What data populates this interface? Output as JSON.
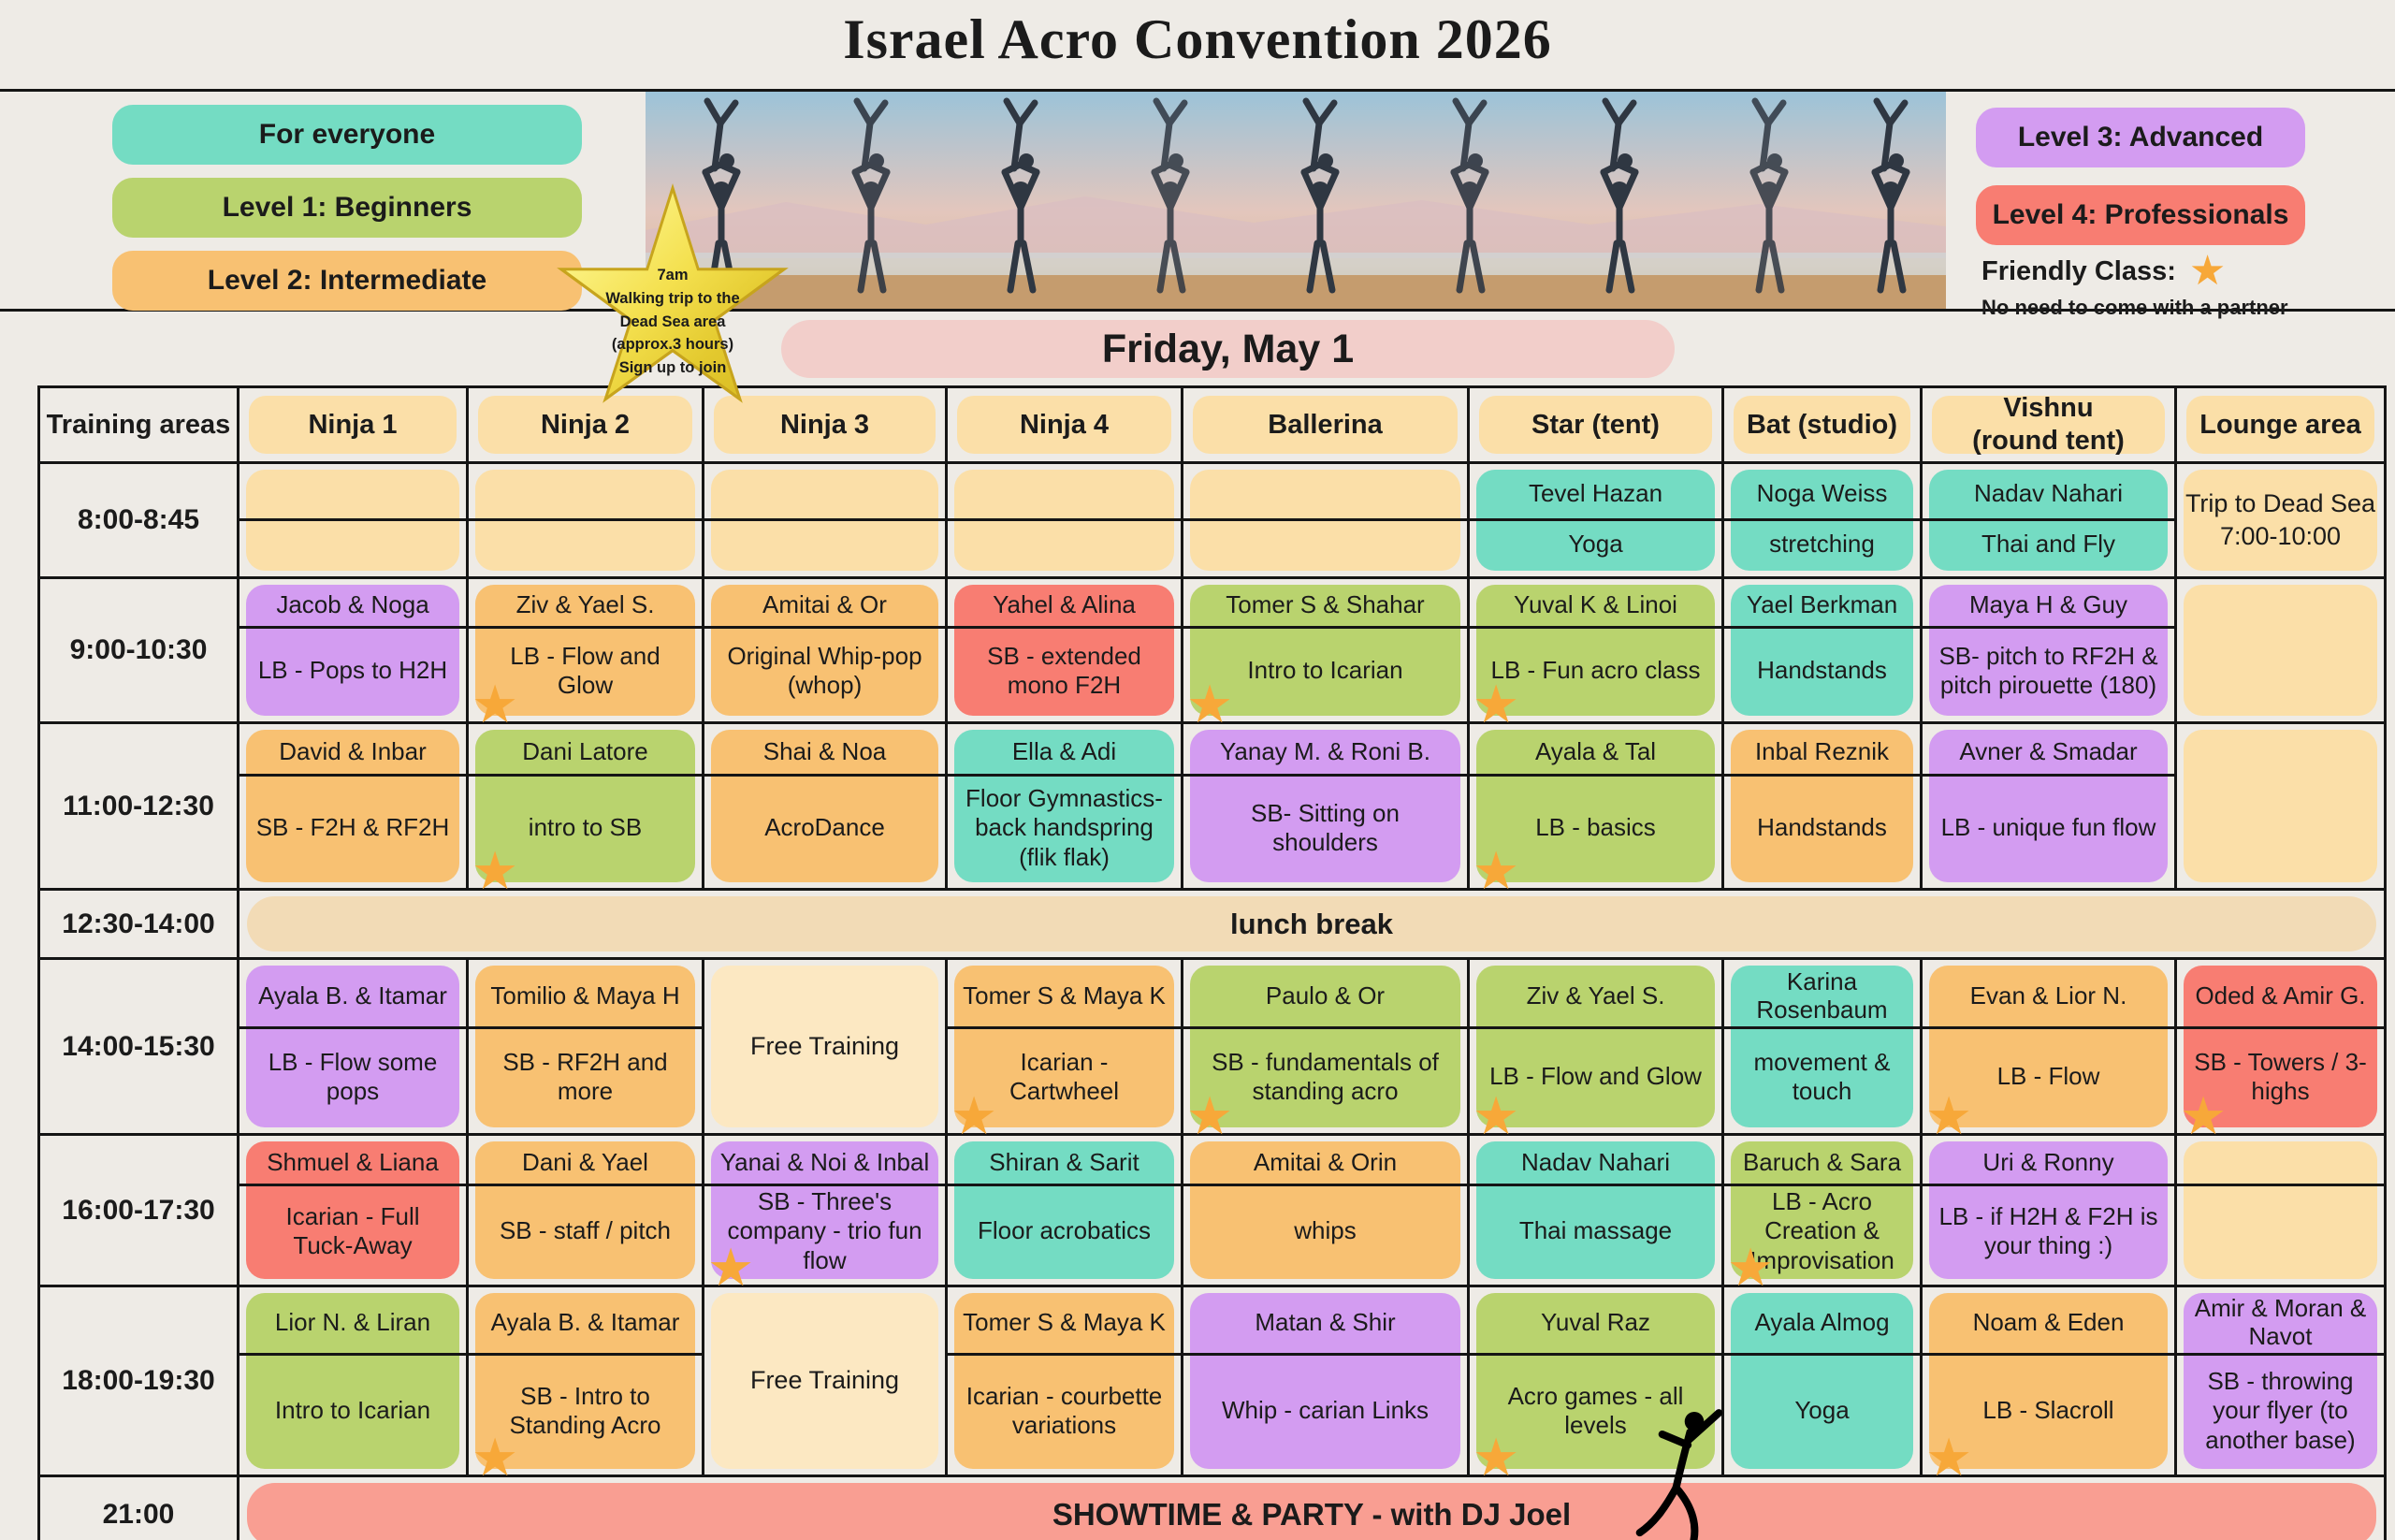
{
  "title": "Israel Acro Convention 2026",
  "day_banner": "Friday, May 1",
  "icons": {
    "friendly_star": "★"
  },
  "colors": {
    "everyone": "#74dcc3",
    "level1": "#b9d36e",
    "level2": "#f8c172",
    "level3": "#d39cf1",
    "level4": "#f87d72",
    "empty": "#fbdfa8",
    "free": "#fce8c2",
    "lunch": "#f2dbb6",
    "day_banner": "#f2ceca",
    "showtime": "#f99e92",
    "star": "#f7a839",
    "page_bg": "#eeebe6",
    "line": "#151515"
  },
  "legend": {
    "left": [
      {
        "label": "For everyone",
        "color_key": "everyone"
      },
      {
        "label": "Level 1: Beginners",
        "color_key": "level1"
      },
      {
        "label": "Level 2: Intermediate",
        "color_key": "level2"
      }
    ],
    "right": [
      {
        "label": "Level 3: Advanced",
        "color_key": "level3"
      },
      {
        "label": "Level 4: Professionals",
        "color_key": "level4"
      }
    ],
    "friendly_class": {
      "label": "Friendly Class:",
      "note": "No need to come with a partner"
    }
  },
  "star_badge": {
    "lines": [
      "7am",
      "Walking trip to the",
      "Dead Sea area",
      "(approx.3 hours)",
      "Sign up to join"
    ]
  },
  "schedule": {
    "columns": [
      "Training areas",
      "Ninja 1",
      "Ninja 2",
      "Ninja 3",
      "Ninja 4",
      "Ballerina",
      "Star (tent)",
      "Bat (studio)",
      "Vishnu\n(round tent)",
      "Lounge area"
    ],
    "rows": [
      {
        "time": "8:00-8:45",
        "cells": [
          {
            "level": "empty",
            "divider": true
          },
          {
            "level": "empty",
            "divider": true
          },
          {
            "level": "empty",
            "divider": true
          },
          {
            "level": "empty",
            "divider": true
          },
          {
            "level": "empty",
            "divider": true
          },
          {
            "who": "Tevel Hazan",
            "what": "Yoga",
            "level": "everyone"
          },
          {
            "who": "Noga Weiss",
            "what": "stretching",
            "level": "everyone"
          },
          {
            "who": "Nadav Nahari",
            "what": "Thai and Fly",
            "level": "everyone"
          },
          {
            "text": "Trip to Dead Sea\n7:00-10:00",
            "level": "empty"
          }
        ]
      },
      {
        "time": "9:00-10:30",
        "cells": [
          {
            "who": "Jacob & Noga",
            "what": "LB - Pops to H2H",
            "level": "level3"
          },
          {
            "who": "Ziv & Yael S.",
            "what": "LB - Flow and Glow",
            "level": "level2",
            "star": true
          },
          {
            "who": "Amitai & Or",
            "what": "Original Whip-pop (whop)",
            "level": "level2"
          },
          {
            "who": "Yahel & Alina",
            "what": "SB - extended mono F2H",
            "level": "level4"
          },
          {
            "who": "Tomer S & Shahar",
            "what": "Intro to Icarian",
            "level": "level1",
            "star": true
          },
          {
            "who": "Yuval K & Linoi",
            "what": "LB - Fun acro class",
            "level": "level1",
            "star": true
          },
          {
            "who": "Yael Berkman",
            "what": "Handstands",
            "level": "everyone"
          },
          {
            "who": "Maya H & Guy",
            "what": "SB- pitch to RF2H & pitch pirouette (180)",
            "level": "level3"
          },
          {
            "level": "empty"
          }
        ]
      },
      {
        "time": "11:00-12:30",
        "cells": [
          {
            "who": "David & Inbar",
            "what": "SB - F2H & RF2H",
            "level": "level2"
          },
          {
            "who": "Dani Latore",
            "what": "intro to SB",
            "level": "level1",
            "star": true
          },
          {
            "who": "Shai & Noa",
            "what": "AcroDance",
            "level": "level2"
          },
          {
            "who": "Ella & Adi",
            "what": "Floor Gymnastics- back handspring (flik flak)",
            "level": "everyone"
          },
          {
            "who": "Yanay M. & Roni B.",
            "what": "SB- Sitting on shoulders",
            "level": "level3"
          },
          {
            "who": "Ayala & Tal",
            "what": "LB - basics",
            "level": "level1",
            "star": true
          },
          {
            "who": "Inbal Reznik",
            "what": "Handstands",
            "level": "level2"
          },
          {
            "who": "Avner & Smadar",
            "what": "LB - unique fun flow",
            "level": "level3"
          },
          {
            "level": "empty"
          }
        ]
      },
      {
        "time": "14:00-15:30",
        "cells": [
          {
            "who": "Ayala B. & Itamar",
            "what": "LB - Flow some pops",
            "level": "level3"
          },
          {
            "who": "Tomilio & Maya H",
            "what": "SB - RF2H and more",
            "level": "level2"
          },
          {
            "text": "Free Training",
            "level": "free"
          },
          {
            "who": "Tomer S & Maya K",
            "what": "Icarian - Cartwheel",
            "level": "level2",
            "star": true
          },
          {
            "who": "Paulo & Or",
            "what": "SB - fundamentals of standing acro",
            "level": "level1",
            "star": true
          },
          {
            "who": "Ziv & Yael S.",
            "what": "LB - Flow and Glow",
            "level": "level1",
            "star": true
          },
          {
            "who": "Karina Rosenbaum",
            "what": "movement & touch",
            "level": "everyone"
          },
          {
            "who": "Evan & Lior N.",
            "what": "LB - Flow",
            "level": "level2",
            "star": true
          },
          {
            "who": "Oded & Amir G.",
            "what": "SB - Towers / 3-highs",
            "level": "level4",
            "star": true
          }
        ]
      },
      {
        "time": "16:00-17:30",
        "cells": [
          {
            "who": "Shmuel & Liana",
            "what": "Icarian - Full Tuck-Away",
            "level": "level4"
          },
          {
            "who": "Dani & Yael",
            "what": "SB - staff / pitch",
            "level": "level2"
          },
          {
            "who": "Yanai & Noi & Inbal",
            "what": "SB - Three's company - trio fun flow",
            "level": "level3",
            "star": true
          },
          {
            "who": "Shiran & Sarit",
            "what": "Floor acrobatics",
            "level": "everyone"
          },
          {
            "who": "Amitai & Orin",
            "what": "whips",
            "level": "level2"
          },
          {
            "who": "Nadav Nahari",
            "what": "Thai massage",
            "level": "everyone"
          },
          {
            "who": "Baruch & Sara",
            "what": "LB - Acro Creation & Improvisation",
            "level": "level1",
            "star": true
          },
          {
            "who": "Uri & Ronny",
            "what": "LB - if H2H & F2H is your thing :)",
            "level": "level3"
          },
          {
            "level": "empty",
            "divider": true
          }
        ]
      },
      {
        "time": "18:00-19:30",
        "cells": [
          {
            "who": "Lior N. & Liran",
            "what": "Intro to Icarian",
            "level": "level1"
          },
          {
            "who": "Ayala B. & Itamar",
            "what": "SB - Intro to Standing Acro",
            "level": "level2",
            "star": true
          },
          {
            "text": "Free Training",
            "level": "free"
          },
          {
            "who": "Tomer S & Maya K",
            "what": "Icarian - courbette variations",
            "level": "level2"
          },
          {
            "who": "Matan & Shir",
            "what": "Whip - carian Links",
            "level": "level3"
          },
          {
            "who": "Yuval Raz",
            "what": "Acro games - all levels",
            "level": "level1",
            "star": true
          },
          {
            "who": "Ayala Almog",
            "what": "Yoga",
            "level": "everyone"
          },
          {
            "who": "Noam & Eden",
            "what": "LB - Slacroll",
            "level": "level2",
            "star": true
          },
          {
            "who": "Amir & Moran & Navot",
            "what": "SB - throwing your flyer (to another base)",
            "level": "level3"
          }
        ]
      }
    ],
    "lunch": {
      "time": "12:30-14:00",
      "label": "lunch break"
    },
    "showtime": {
      "time": "21:00",
      "label": "SHOWTIME & PARTY - with DJ Joel"
    }
  }
}
